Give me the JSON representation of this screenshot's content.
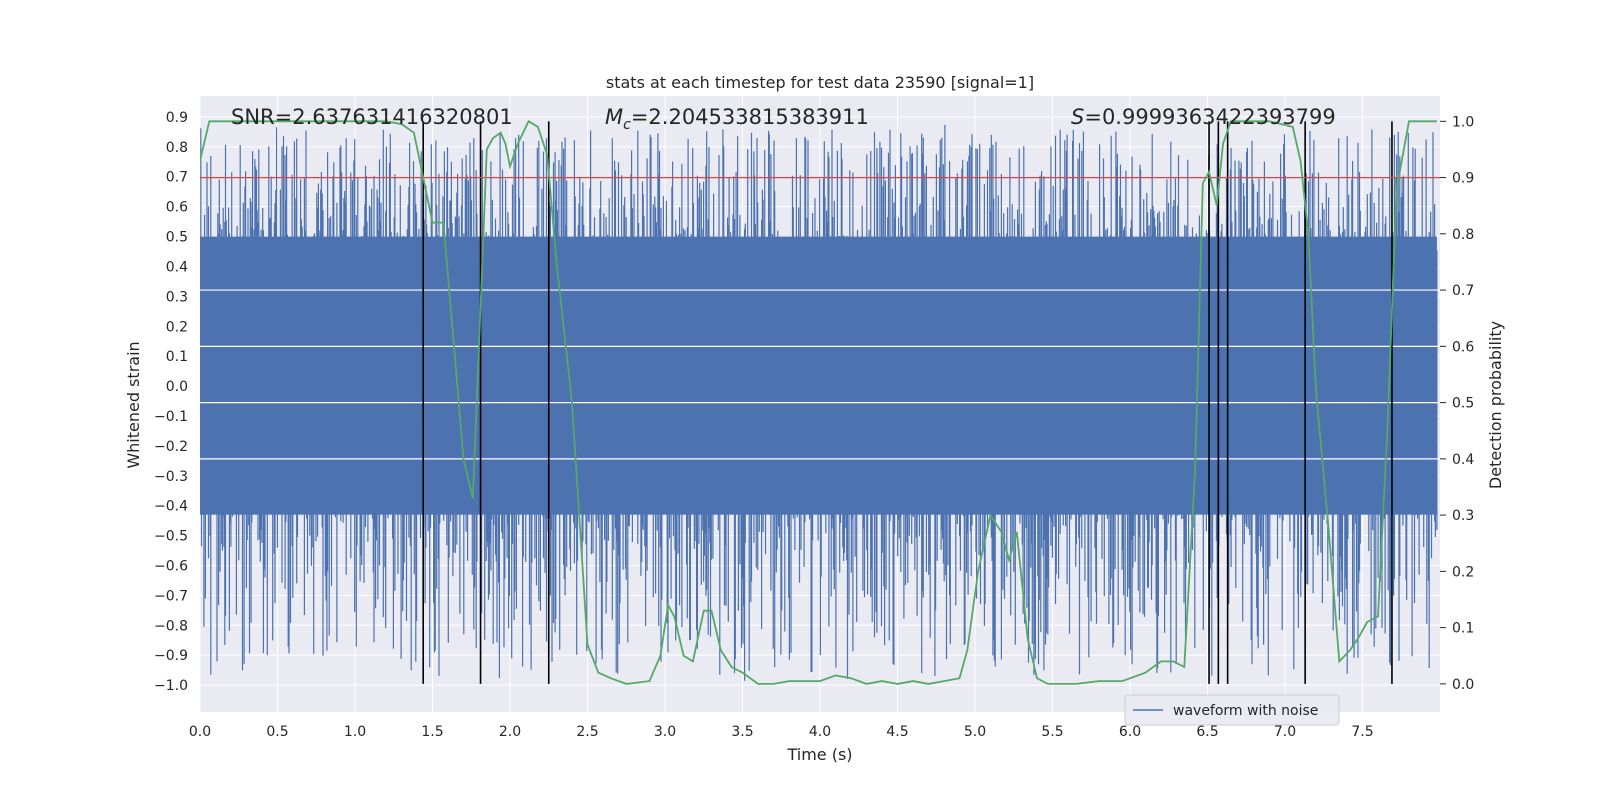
{
  "chart_data": {
    "type": "line",
    "title": "stats at each timestep for test data 23590 [signal=1]",
    "xlabel": "Time (s)",
    "ylabel_left": "Whitened strain",
    "ylabel_right": "Detection probability",
    "xlim": [
      0.0,
      8.0
    ],
    "ylim_left": [
      -1.09,
      0.97
    ],
    "ylim_right": [
      -0.05,
      1.045
    ],
    "x_ticks": [
      "0.0",
      "0.5",
      "1.0",
      "1.5",
      "2.0",
      "2.5",
      "3.0",
      "3.5",
      "4.0",
      "4.5",
      "5.0",
      "5.5",
      "6.0",
      "6.5",
      "7.0",
      "7.5"
    ],
    "x_tick_values": [
      0.0,
      0.5,
      1.0,
      1.5,
      2.0,
      2.5,
      3.0,
      3.5,
      4.0,
      4.5,
      5.0,
      5.5,
      6.0,
      6.5,
      7.0,
      7.5
    ],
    "y_left_ticks": [
      "0.9",
      "0.8",
      "0.7",
      "0.6",
      "0.5",
      "0.4",
      "0.3",
      "0.2",
      "0.1",
      "0.0",
      "−0.1",
      "−0.2",
      "−0.3",
      "−0.4",
      "−0.5",
      "−0.6",
      "−0.7",
      "−0.8",
      "−0.9",
      "−1.0"
    ],
    "y_left_tick_values": [
      0.9,
      0.8,
      0.7,
      0.6,
      0.5,
      0.4,
      0.3,
      0.2,
      0.1,
      0.0,
      -0.1,
      -0.2,
      -0.3,
      -0.4,
      -0.5,
      -0.6,
      -0.7,
      -0.8,
      -0.9,
      -1.0
    ],
    "y_right_ticks": [
      "1.0",
      "0.9",
      "0.8",
      "0.7",
      "0.6",
      "0.5",
      "0.4",
      "0.3",
      "0.2",
      "0.1",
      "0.0"
    ],
    "y_right_tick_values": [
      1.0,
      0.9,
      0.8,
      0.7,
      0.6,
      0.5,
      0.4,
      0.3,
      0.2,
      0.1,
      0.0
    ],
    "annotations": {
      "snr": "SNR=2.637631416320801",
      "mc_symbol": "M",
      "mc_sub": "c",
      "mc_value": "=2.204533815383911",
      "s_symbol": "S",
      "s_value": "=0.9999363422393799"
    },
    "legend": {
      "label": "waveform with noise",
      "position": "lower-right"
    },
    "threshold": {
      "probability": 0.9,
      "color": "#c44e52"
    },
    "vertical_markers_x": [
      1.44,
      1.81,
      2.25,
      6.51,
      6.57,
      6.63,
      7.13,
      7.69
    ],
    "waveform": {
      "name": "waveform with noise",
      "color": "#4c72b0",
      "core_range": [
        -0.43,
        0.5
      ],
      "spike_max": 0.88,
      "spike_min": -0.99,
      "samples": 1600
    },
    "probability_series": {
      "name": "detection probability",
      "color": "#55a868",
      "x": [
        0.0,
        0.06,
        0.12,
        0.2,
        0.3,
        0.5,
        0.7,
        0.9,
        1.0,
        1.1,
        1.2,
        1.3,
        1.38,
        1.44,
        1.5,
        1.57,
        1.63,
        1.7,
        1.76,
        1.8,
        1.85,
        1.89,
        1.94,
        1.97,
        2.0,
        2.05,
        2.12,
        2.18,
        2.24,
        2.3,
        2.4,
        2.5,
        2.57,
        2.65,
        2.75,
        2.9,
        2.97,
        3.02,
        3.06,
        3.12,
        3.18,
        3.25,
        3.3,
        3.36,
        3.43,
        3.5,
        3.6,
        3.7,
        3.8,
        4.0,
        4.1,
        4.2,
        4.3,
        4.4,
        4.5,
        4.6,
        4.7,
        4.8,
        4.9,
        4.95,
        5.02,
        5.1,
        5.17,
        5.22,
        5.27,
        5.34,
        5.4,
        5.47,
        5.53,
        5.65,
        5.8,
        5.95,
        6.1,
        6.2,
        6.28,
        6.35,
        6.42,
        6.47,
        6.51,
        6.56,
        6.6,
        6.65,
        6.7,
        6.8,
        6.9,
        7.05,
        7.1,
        7.15,
        7.2,
        7.28,
        7.35,
        7.42,
        7.47,
        7.53,
        7.6,
        7.66,
        7.72,
        7.8,
        7.98
      ],
      "y": [
        0.93,
        1.0,
        1.0,
        1.0,
        1.0,
        1.0,
        1.0,
        1.0,
        1.0,
        1.0,
        1.0,
        0.995,
        0.98,
        0.9,
        0.82,
        0.82,
        0.63,
        0.4,
        0.33,
        0.6,
        0.95,
        0.97,
        0.98,
        0.96,
        0.92,
        0.96,
        1.0,
        0.99,
        0.94,
        0.75,
        0.5,
        0.07,
        0.02,
        0.01,
        0.0,
        0.005,
        0.05,
        0.14,
        0.12,
        0.05,
        0.04,
        0.13,
        0.13,
        0.06,
        0.03,
        0.02,
        0.0,
        0.0,
        0.005,
        0.005,
        0.015,
        0.01,
        0.0,
        0.005,
        0.0,
        0.005,
        0.0,
        0.005,
        0.01,
        0.06,
        0.2,
        0.3,
        0.27,
        0.22,
        0.27,
        0.08,
        0.01,
        0.0,
        0.0,
        0.0,
        0.005,
        0.005,
        0.02,
        0.04,
        0.04,
        0.03,
        0.38,
        0.89,
        0.91,
        0.85,
        0.96,
        1.0,
        1.0,
        1.0,
        1.0,
        0.99,
        0.93,
        0.8,
        0.52,
        0.28,
        0.04,
        0.06,
        0.08,
        0.11,
        0.12,
        0.45,
        0.88,
        1.0,
        1.0
      ]
    }
  }
}
